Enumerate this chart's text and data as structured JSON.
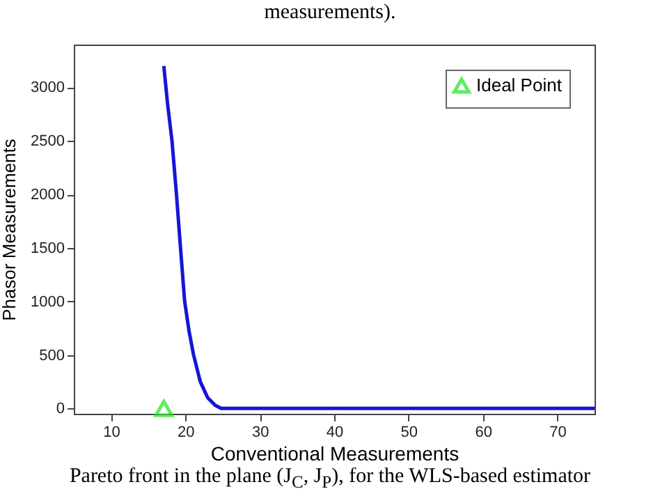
{
  "chart_data": {
    "type": "line",
    "xlabel": "Conventional Measurements",
    "ylabel": "Phasor Measurements",
    "xlim": [
      5,
      75
    ],
    "ylim": [
      -50,
      3400
    ],
    "xticks": [
      10,
      20,
      30,
      40,
      50,
      60,
      70
    ],
    "yticks": [
      0,
      500,
      1000,
      1500,
      2000,
      2500,
      3000
    ],
    "grid": false,
    "legend": "top right",
    "annotations": [
      "measurements).",
      "Pareto front in the plane (J$_{C}$, J$_{P}$), for the WLS-based estimator"
    ],
    "series": [
      {
        "color": "#1515d8",
        "x": [
          17.1,
          17.6,
          18.2,
          18.8,
          19.4,
          19.9,
          20.5,
          21.1,
          22.0,
          23.0,
          24.0,
          24.8,
          26,
          30,
          40,
          50,
          60,
          75
        ],
        "values": [
          3200,
          2850,
          2500,
          2000,
          1450,
          1000,
          720,
          500,
          250,
          100,
          30,
          0,
          0,
          0,
          0,
          0,
          0,
          0
        ]
      },
      {
        "type": "scatter",
        "name": "Ideal Point",
        "color": "#1ee61e",
        "marker": "triangle",
        "x": [
          17.1
        ],
        "values": [
          0
        ]
      }
    ]
  }
}
